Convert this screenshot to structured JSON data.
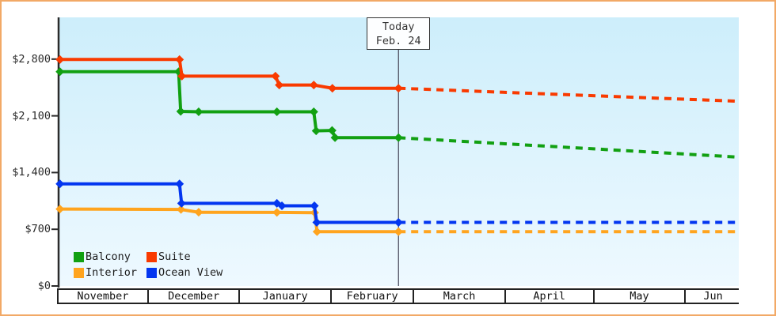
{
  "frame": {
    "border_color": "#f2a966",
    "background": "#ffffff"
  },
  "chart_data": {
    "type": "line",
    "title": "",
    "currency": "USD",
    "plot_background": {
      "top": "#cdeefb",
      "bottom": "#eef9ff"
    },
    "grid": false,
    "legend_position": "bottom-left",
    "today_marker": {
      "line1": "Today",
      "line2": "Feb. 24",
      "day": 115.7
    },
    "x_axis": {
      "unit": "days-from-Nov-1",
      "total_days": 231,
      "months": [
        {
          "label": "November",
          "days": 30
        },
        {
          "label": "December",
          "days": 31
        },
        {
          "label": "January",
          "days": 31
        },
        {
          "label": "February",
          "days": 28
        },
        {
          "label": "March",
          "days": 31
        },
        {
          "label": "April",
          "days": 30
        },
        {
          "label": "May",
          "days": 31
        },
        {
          "label": "Jun",
          "days": 31
        }
      ]
    },
    "y_axis": {
      "ylim": [
        0,
        3315
      ],
      "tick_interval": 700,
      "ticks": [
        {
          "value": 0,
          "label": "$0"
        },
        {
          "value": 700,
          "label": "$700"
        },
        {
          "value": 1400,
          "label": "$1,400"
        },
        {
          "value": 2100,
          "label": "$2,100"
        },
        {
          "value": 2800,
          "label": "$2,800"
        }
      ]
    },
    "series": [
      {
        "name": "Interior",
        "color": "#ffa41e",
        "solid": [
          [
            1,
            950
          ],
          [
            42,
            945
          ],
          [
            48,
            910
          ],
          [
            74.5,
            908
          ],
          [
            87.3,
            905
          ],
          [
            88.1,
            670
          ],
          [
            115.7,
            670
          ]
        ],
        "projected": [
          [
            115.7,
            670
          ],
          [
            231,
            670
          ]
        ]
      },
      {
        "name": "Ocean View",
        "color": "#0336f0",
        "solid": [
          [
            1,
            1260
          ],
          [
            41.5,
            1260
          ],
          [
            42.2,
            1020
          ],
          [
            74.5,
            1020
          ],
          [
            76.2,
            990
          ],
          [
            87.2,
            990
          ],
          [
            88,
            785
          ],
          [
            115.7,
            785
          ]
        ],
        "projected": [
          [
            115.7,
            785
          ],
          [
            231,
            785
          ]
        ]
      },
      {
        "name": "Balcony",
        "color": "#12a012",
        "solid": [
          [
            1,
            2645
          ],
          [
            41.2,
            2645
          ],
          [
            41.9,
            2155
          ],
          [
            48,
            2150
          ],
          [
            74.5,
            2150
          ],
          [
            87,
            2150
          ],
          [
            87.8,
            1915
          ],
          [
            93.2,
            1920
          ],
          [
            94.2,
            1830
          ],
          [
            115.7,
            1830
          ]
        ],
        "projected": [
          [
            115.7,
            1830
          ],
          [
            231,
            1590
          ]
        ]
      },
      {
        "name": "Suite",
        "color": "#f93a00",
        "solid": [
          [
            1,
            2795
          ],
          [
            41.5,
            2795
          ],
          [
            42.3,
            2590
          ],
          [
            74,
            2590
          ],
          [
            75.3,
            2480
          ],
          [
            87,
            2480
          ],
          [
            93.3,
            2440
          ],
          [
            115.7,
            2440
          ]
        ],
        "projected": [
          [
            115.7,
            2440
          ],
          [
            231,
            2280
          ]
        ]
      }
    ],
    "legend": {
      "items": [
        {
          "label": "Balcony",
          "color": "#12a012"
        },
        {
          "label": "Suite",
          "color": "#f93a00"
        },
        {
          "label": "Interior",
          "color": "#ffa41e"
        },
        {
          "label": "Ocean View",
          "color": "#0336f0"
        }
      ]
    }
  }
}
